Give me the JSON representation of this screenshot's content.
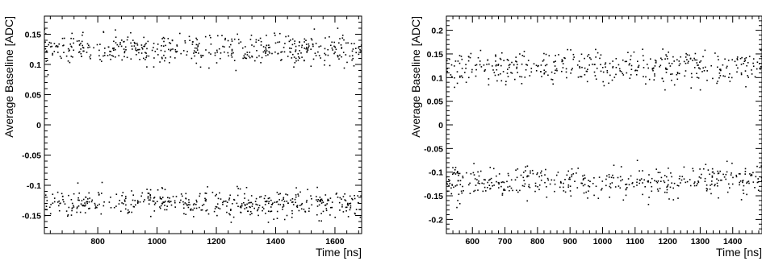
{
  "chart_data": [
    {
      "type": "scatter",
      "xlabel": "Time [ns]",
      "ylabel": "Average Baseline [ADC]",
      "xlim": [
        620,
        1690
      ],
      "ylim": [
        -0.18,
        0.18
      ],
      "xticks": [
        800,
        1000,
        1200,
        1400,
        1600
      ],
      "xtick_labels": [
        "800",
        "1000",
        "1200",
        "1400",
        "1600"
      ],
      "yticks": [
        -0.15,
        -0.1,
        -0.05,
        0,
        0.05,
        0.1,
        0.15
      ],
      "ytick_labels": [
        "-0.15",
        "-0.1",
        "-0.05",
        "0",
        "0.05",
        "0.1",
        "0.15"
      ],
      "grid": false,
      "series": [
        {
          "band_center": 0.125,
          "band_spread": 0.022,
          "count": 480
        },
        {
          "band_center": -0.13,
          "band_spread": 0.02,
          "count": 480
        }
      ]
    },
    {
      "type": "scatter",
      "xlabel": "Time [ns]",
      "ylabel": "Average Baseline [ADC]",
      "xlim": [
        520,
        1490
      ],
      "ylim": [
        -0.23,
        0.23
      ],
      "xticks": [
        600,
        700,
        800,
        900,
        1000,
        1100,
        1200,
        1300,
        1400
      ],
      "xtick_labels": [
        "600",
        "700",
        "800",
        "900",
        "1000",
        "1100",
        "1200",
        "1300",
        "1400"
      ],
      "yticks": [
        -0.2,
        -0.15,
        -0.1,
        -0.05,
        0,
        0.05,
        0.1,
        0.15,
        0.2
      ],
      "ytick_labels": [
        "-0.2",
        "-0.15",
        "-0.1",
        "-0.05",
        "0",
        "0.05",
        "0.1",
        "0.15",
        "0.2"
      ],
      "grid": false,
      "series": [
        {
          "band_center": 0.12,
          "band_spread": 0.032,
          "count": 420
        },
        {
          "band_center": -0.12,
          "band_spread": 0.03,
          "count": 420
        }
      ]
    }
  ]
}
